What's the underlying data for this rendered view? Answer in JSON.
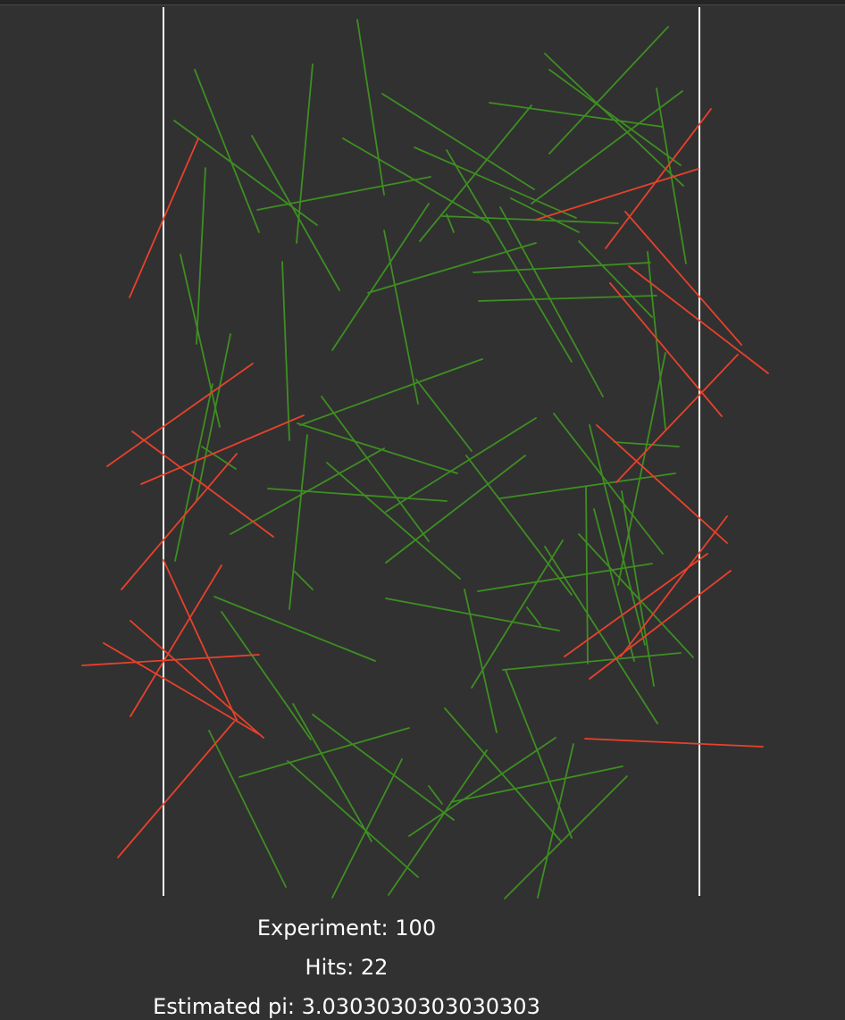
{
  "colors": {
    "background": "#313131",
    "boundary": "#ffffff",
    "miss": "#3e8e22",
    "hit": "#e8412b"
  },
  "stats": {
    "experiment": "Experiment: 100",
    "hits": "Hits: 22",
    "estimated_pi": "Estimated pi: 3.0303030303030303"
  },
  "needles": {
    "hits": 22,
    "misses": 78
  }
}
